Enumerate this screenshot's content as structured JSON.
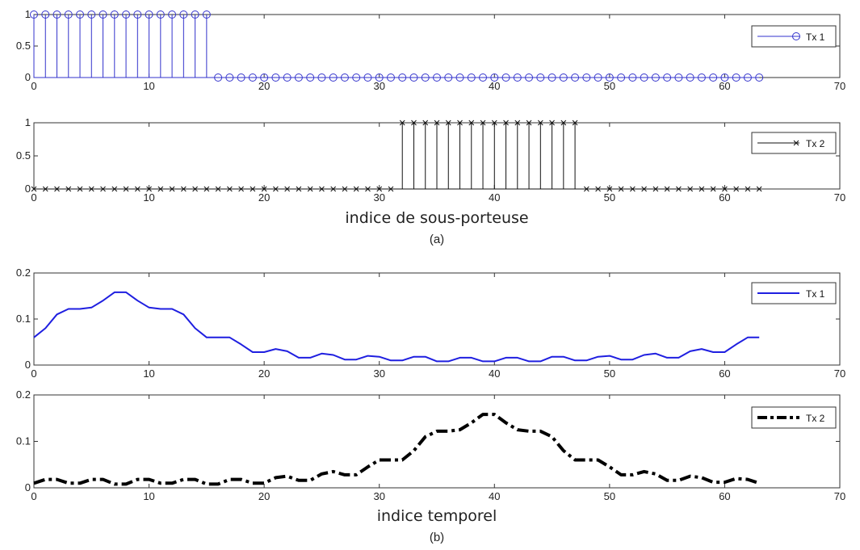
{
  "chart_data": [
    {
      "type": "stem",
      "xlim": [
        0,
        70
      ],
      "ylim": [
        0,
        1
      ],
      "xticks": [
        0,
        10,
        20,
        30,
        40,
        50,
        60,
        70
      ],
      "yticks": [
        0,
        0.5,
        1
      ],
      "ytick_labels": [
        "0",
        "0.5",
        "1"
      ],
      "grid": false,
      "legend": {
        "position": "top-right"
      },
      "series": [
        {
          "name": "Tx 1",
          "color": "#3333cc",
          "marker": "circle",
          "x": [
            0,
            1,
            2,
            3,
            4,
            5,
            6,
            7,
            8,
            9,
            10,
            11,
            12,
            13,
            14,
            15,
            16,
            17,
            18,
            19,
            20,
            21,
            22,
            23,
            24,
            25,
            26,
            27,
            28,
            29,
            30,
            31,
            32,
            33,
            34,
            35,
            36,
            37,
            38,
            39,
            40,
            41,
            42,
            43,
            44,
            45,
            46,
            47,
            48,
            49,
            50,
            51,
            52,
            53,
            54,
            55,
            56,
            57,
            58,
            59,
            60,
            61,
            62,
            63
          ],
          "values": [
            1,
            1,
            1,
            1,
            1,
            1,
            1,
            1,
            1,
            1,
            1,
            1,
            1,
            1,
            1,
            1,
            0,
            0,
            0,
            0,
            0,
            0,
            0,
            0,
            0,
            0,
            0,
            0,
            0,
            0,
            0,
            0,
            0,
            0,
            0,
            0,
            0,
            0,
            0,
            0,
            0,
            0,
            0,
            0,
            0,
            0,
            0,
            0,
            0,
            0,
            0,
            0,
            0,
            0,
            0,
            0,
            0,
            0,
            0,
            0,
            0,
            0,
            0,
            0
          ]
        }
      ]
    },
    {
      "type": "stem",
      "xlim": [
        0,
        70
      ],
      "ylim": [
        0,
        1
      ],
      "xticks": [
        0,
        10,
        20,
        30,
        40,
        50,
        60,
        70
      ],
      "yticks": [
        0,
        0.5,
        1
      ],
      "ytick_labels": [
        "0",
        "0.5",
        "1"
      ],
      "xlabel": "indice de sous-porteuse",
      "caption": "(a)",
      "grid": false,
      "legend": {
        "position": "top-right"
      },
      "series": [
        {
          "name": "Tx 2",
          "color": "#111111",
          "marker": "x",
          "x": [
            0,
            1,
            2,
            3,
            4,
            5,
            6,
            7,
            8,
            9,
            10,
            11,
            12,
            13,
            14,
            15,
            16,
            17,
            18,
            19,
            20,
            21,
            22,
            23,
            24,
            25,
            26,
            27,
            28,
            29,
            30,
            31,
            32,
            33,
            34,
            35,
            36,
            37,
            38,
            39,
            40,
            41,
            42,
            43,
            44,
            45,
            46,
            47,
            48,
            49,
            50,
            51,
            52,
            53,
            54,
            55,
            56,
            57,
            58,
            59,
            60,
            61,
            62,
            63
          ],
          "values": [
            0,
            0,
            0,
            0,
            0,
            0,
            0,
            0,
            0,
            0,
            0,
            0,
            0,
            0,
            0,
            0,
            0,
            0,
            0,
            0,
            0,
            0,
            0,
            0,
            0,
            0,
            0,
            0,
            0,
            0,
            0,
            0,
            1,
            1,
            1,
            1,
            1,
            1,
            1,
            1,
            1,
            1,
            1,
            1,
            1,
            1,
            1,
            1,
            0,
            0,
            0,
            0,
            0,
            0,
            0,
            0,
            0,
            0,
            0,
            0,
            0,
            0,
            0,
            0
          ]
        }
      ]
    },
    {
      "type": "line",
      "xlim": [
        0,
        70
      ],
      "ylim": [
        0,
        0.2
      ],
      "xticks": [
        0,
        10,
        20,
        30,
        40,
        50,
        60,
        70
      ],
      "yticks": [
        0,
        0.1,
        0.2
      ],
      "ytick_labels": [
        "0",
        "0.1",
        "0.2"
      ],
      "grid": false,
      "legend": {
        "position": "top-right"
      },
      "series": [
        {
          "name": "Tx 1",
          "color": "#1f1fe0",
          "line_style": "solid",
          "x": [
            0,
            1,
            2,
            3,
            4,
            5,
            6,
            7,
            8,
            9,
            10,
            11,
            12,
            13,
            14,
            15,
            16,
            17,
            18,
            19,
            20,
            21,
            22,
            23,
            24,
            25,
            26,
            27,
            28,
            29,
            30,
            31,
            32,
            33,
            34,
            35,
            36,
            37,
            38,
            39,
            40,
            41,
            42,
            43,
            44,
            45,
            46,
            47,
            48,
            49,
            50,
            51,
            52,
            53,
            54,
            55,
            56,
            57,
            58,
            59,
            60,
            61,
            62,
            63
          ],
          "values": [
            0.06,
            0.08,
            0.11,
            0.122,
            0.122,
            0.125,
            0.14,
            0.158,
            0.158,
            0.14,
            0.125,
            0.122,
            0.122,
            0.11,
            0.08,
            0.06,
            0.06,
            0.06,
            0.045,
            0.028,
            0.028,
            0.035,
            0.03,
            0.016,
            0.016,
            0.025,
            0.022,
            0.012,
            0.012,
            0.02,
            0.018,
            0.01,
            0.01,
            0.018,
            0.018,
            0.008,
            0.008,
            0.016,
            0.016,
            0.008,
            0.008,
            0.016,
            0.016,
            0.008,
            0.008,
            0.018,
            0.018,
            0.01,
            0.01,
            0.018,
            0.02,
            0.012,
            0.012,
            0.022,
            0.025,
            0.016,
            0.016,
            0.03,
            0.035,
            0.028,
            0.028,
            0.045,
            0.06,
            0.06
          ]
        }
      ]
    },
    {
      "type": "line",
      "xlim": [
        0,
        70
      ],
      "ylim": [
        0,
        0.2
      ],
      "xticks": [
        0,
        10,
        20,
        30,
        40,
        50,
        60,
        70
      ],
      "yticks": [
        0,
        0.1,
        0.2
      ],
      "ytick_labels": [
        "0",
        "0.1",
        "0.2"
      ],
      "xlabel": "indice temporel",
      "caption": "(b)",
      "grid": false,
      "legend": {
        "position": "top-right"
      },
      "series": [
        {
          "name": "Tx 2",
          "color": "#000000",
          "line_style": "dashdot",
          "x": [
            0,
            1,
            2,
            3,
            4,
            5,
            6,
            7,
            8,
            9,
            10,
            11,
            12,
            13,
            14,
            15,
            16,
            17,
            18,
            19,
            20,
            21,
            22,
            23,
            24,
            25,
            26,
            27,
            28,
            29,
            30,
            31,
            32,
            33,
            34,
            35,
            36,
            37,
            38,
            39,
            40,
            41,
            42,
            43,
            44,
            45,
            46,
            47,
            48,
            49,
            50,
            51,
            52,
            53,
            54,
            55,
            56,
            57,
            58,
            59,
            60,
            61,
            62,
            63
          ],
          "values": [
            0.01,
            0.018,
            0.018,
            0.01,
            0.01,
            0.018,
            0.018,
            0.008,
            0.008,
            0.018,
            0.018,
            0.01,
            0.01,
            0.018,
            0.018,
            0.008,
            0.008,
            0.018,
            0.018,
            0.01,
            0.01,
            0.022,
            0.025,
            0.016,
            0.016,
            0.03,
            0.035,
            0.028,
            0.028,
            0.045,
            0.06,
            0.06,
            0.06,
            0.08,
            0.11,
            0.122,
            0.122,
            0.125,
            0.14,
            0.158,
            0.158,
            0.14,
            0.125,
            0.122,
            0.122,
            0.11,
            0.08,
            0.06,
            0.06,
            0.06,
            0.045,
            0.028,
            0.028,
            0.035,
            0.03,
            0.016,
            0.016,
            0.025,
            0.022,
            0.012,
            0.012,
            0.02,
            0.018,
            0.01
          ]
        }
      ]
    }
  ]
}
